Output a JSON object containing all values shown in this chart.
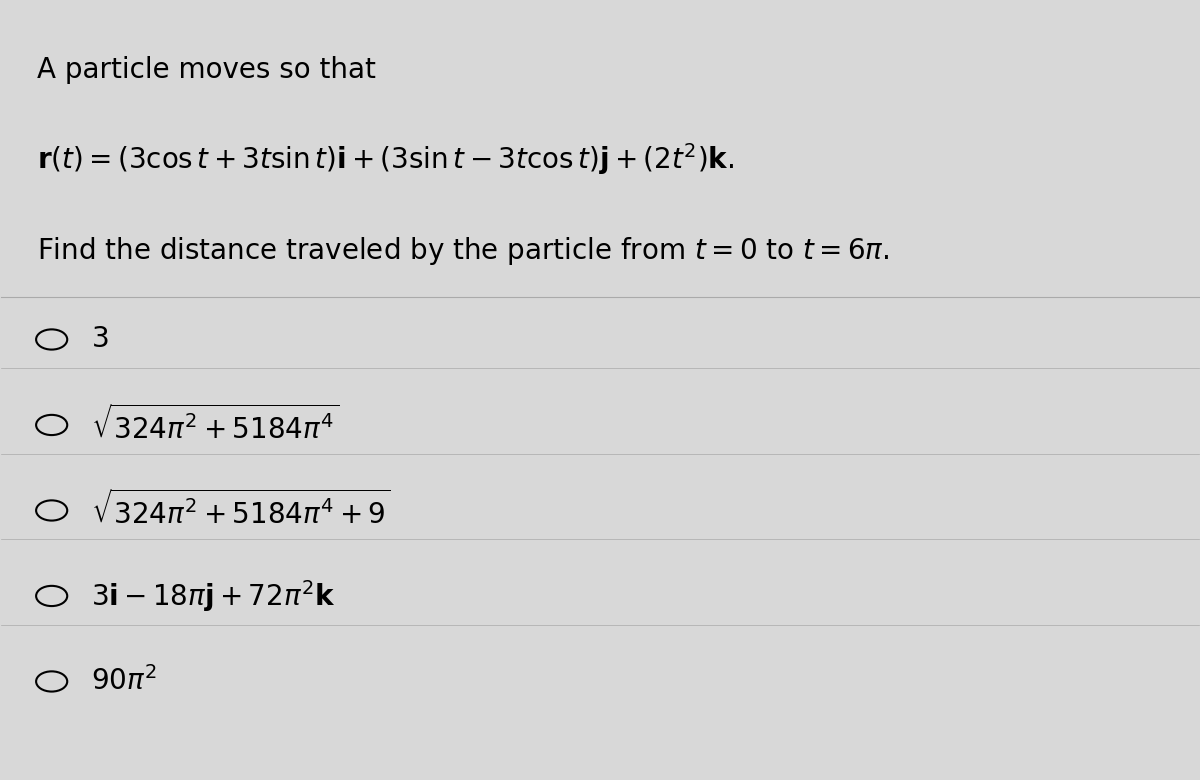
{
  "background_color": "#d8d8d8",
  "text_color": "#000000",
  "title_line1": "A particle moves so that",
  "fig_width": 12.0,
  "fig_height": 7.8
}
